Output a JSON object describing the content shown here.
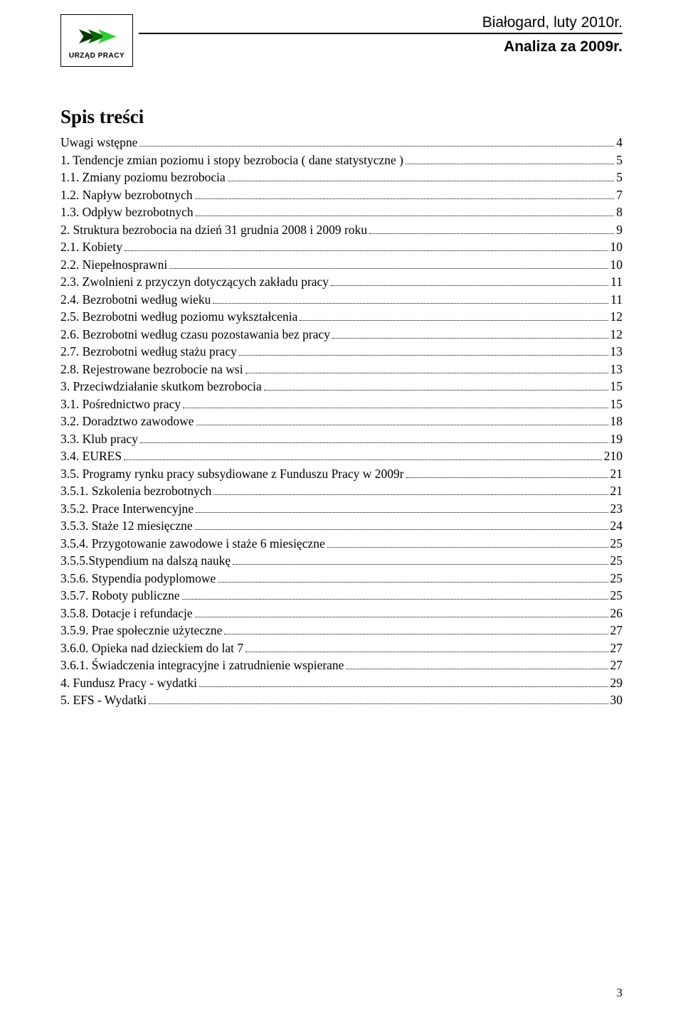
{
  "header": {
    "logo_caption": "URZĄD PRACY",
    "city_line": "Białogard, luty 2010r.",
    "subtitle": "Analiza za 2009r."
  },
  "toc_title": "Spis treści",
  "toc": [
    {
      "label": "Uwagi wstępne",
      "page": "4"
    },
    {
      "label": "1. Tendencje zmian poziomu i stopy bezrobocia ( dane statystyczne )",
      "page": "5"
    },
    {
      "label": "1.1. Zmiany poziomu bezrobocia",
      "page": "5"
    },
    {
      "label": "1.2. Napływ bezrobotnych",
      "page": "7"
    },
    {
      "label": "1.3. Odpływ bezrobotnych",
      "page": "8"
    },
    {
      "label": "2. Struktura bezrobocia na dzień 31 grudnia 2008 i 2009 roku",
      "page": "9"
    },
    {
      "label": "2.1. Kobiety",
      "page": "10"
    },
    {
      "label": "2.2. Niepełnosprawni",
      "page": "10"
    },
    {
      "label": "2.3. Zwolnieni z przyczyn dotyczących zakładu pracy",
      "page": "11"
    },
    {
      "label": "2.4. Bezrobotni według wieku",
      "page": "11"
    },
    {
      "label": "2.5. Bezrobotni według poziomu wykształcenia",
      "page": "12"
    },
    {
      "label": "2.6. Bezrobotni według czasu pozostawania bez pracy",
      "page": "12"
    },
    {
      "label": "2.7. Bezrobotni według stażu pracy",
      "page": "13"
    },
    {
      "label": "2.8. Rejestrowane bezrobocie na wsi",
      "page": "13"
    },
    {
      "label": "3. Przeciwdziałanie skutkom bezrobocia",
      "page": "15"
    },
    {
      "label": "3.1. Pośrednictwo pracy",
      "page": "15"
    },
    {
      "label": "3.2. Doradztwo zawodowe",
      "page": "18"
    },
    {
      "label": "3.3. Klub pracy",
      "page": "19"
    },
    {
      "label": "3.4. EURES",
      "page": "210"
    },
    {
      "label": "3.5. Programy rynku pracy subsydiowane z Funduszu Pracy w 2009r",
      "page": "21"
    },
    {
      "label": "3.5.1. Szkolenia bezrobotnych ",
      "page": "21"
    },
    {
      "label": "3.5.2. Prace Interwencyjne",
      "page": "23"
    },
    {
      "label": "3.5.3. Staże 12 miesięczne",
      "page": "24"
    },
    {
      "label": "3.5.4. Przygotowanie zawodowe i staże 6 miesięczne",
      "page": "25"
    },
    {
      "label": "3.5.5.Stypendium na dalszą naukę",
      "page": "25"
    },
    {
      "label": "3.5.6. Stypendia podyplomowe",
      "page": "25"
    },
    {
      "label": "3.5.7. Roboty publiczne",
      "page": "25"
    },
    {
      "label": "3.5.8. Dotacje i refundacje",
      "page": "26"
    },
    {
      "label": "3.5.9. Prae społecznie użyteczne",
      "page": "27"
    },
    {
      "label": "3.6.0. Opieka nad dzieckiem do lat 7",
      "page": "27"
    },
    {
      "label": "3.6.1. Świadczenia integracyjne i zatrudnienie wspierane",
      "page": "27"
    },
    {
      "label": "4. Fundusz Pracy - wydatki",
      "page": "29"
    },
    {
      "label": "5. EFS - Wydatki",
      "page": "30"
    }
  ],
  "page_number": "3"
}
